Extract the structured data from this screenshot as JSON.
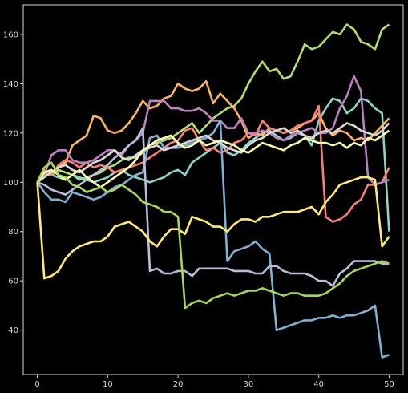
{
  "chart_data": {
    "type": "line",
    "title": "",
    "xlabel": "",
    "ylabel": "",
    "xlim": [
      -2,
      52
    ],
    "ylim": [
      22,
      172
    ],
    "xticks": [
      0,
      10,
      20,
      30,
      40,
      50
    ],
    "yticks": [
      40,
      60,
      80,
      100,
      120,
      140,
      160
    ],
    "grid": false,
    "background": "#000000",
    "axis_color": "#d8d8d8",
    "x": [
      0,
      1,
      2,
      3,
      4,
      5,
      6,
      7,
      8,
      9,
      10,
      11,
      12,
      13,
      14,
      15,
      16,
      17,
      18,
      19,
      20,
      21,
      22,
      23,
      24,
      25,
      26,
      27,
      28,
      29,
      30,
      31,
      32,
      33,
      34,
      35,
      36,
      37,
      38,
      39,
      40,
      41,
      42,
      43,
      44,
      45,
      46,
      47,
      48,
      49,
      50
    ],
    "series": [
      {
        "color": "#b3de69",
        "values": [
          100,
          104,
          103,
          105,
          104,
          103,
          101,
          102,
          103,
          104,
          106,
          107,
          109,
          110,
          110,
          112,
          115,
          116,
          117,
          118,
          120,
          122,
          124,
          120,
          123,
          126,
          128,
          130,
          131,
          134,
          140,
          145,
          149,
          145,
          146,
          142,
          143,
          149,
          156,
          154,
          155,
          158,
          161,
          160,
          164,
          162,
          157,
          156,
          154,
          162,
          164
        ]
      },
      {
        "color": "#8dd3c7",
        "values": [
          100,
          104,
          103,
          102,
          101,
          103,
          102,
          101,
          100,
          101,
          102,
          104,
          105,
          103,
          102,
          101,
          100,
          101,
          102,
          104,
          105,
          103,
          108,
          110,
          112,
          114,
          116,
          112,
          111,
          113,
          116,
          118,
          120,
          121,
          119,
          117,
          118,
          120,
          119,
          115,
          125,
          130,
          134,
          133,
          128,
          130,
          134,
          133,
          130,
          128,
          80
        ]
      },
      {
        "color": "#fdb462",
        "values": [
          100,
          103,
          104,
          106,
          108,
          115,
          117,
          119,
          127,
          126,
          121,
          120,
          121,
          124,
          128,
          133,
          130,
          131,
          134,
          135,
          140,
          138,
          137,
          138,
          141,
          132,
          136,
          133,
          130,
          125,
          118,
          120,
          119,
          122,
          121,
          120,
          121,
          122,
          124,
          125,
          128,
          122,
          119,
          121,
          120,
          117,
          118,
          117,
          120,
          123,
          126
        ]
      },
      {
        "color": "#fb8072",
        "values": [
          100,
          105,
          103,
          107,
          109,
          108,
          106,
          108,
          106,
          107,
          106,
          104,
          105,
          106,
          107,
          108,
          110,
          112,
          114,
          116,
          117,
          121,
          122,
          117,
          113,
          114,
          112,
          113,
          116,
          117,
          120,
          119,
          125,
          122,
          121,
          120,
          121,
          123,
          124,
          125,
          131,
          86,
          84,
          85,
          87,
          91,
          93,
          99,
          99,
          100,
          106
        ]
      },
      {
        "color": "#bc82bd",
        "values": [
          100,
          103,
          111,
          113,
          113,
          109,
          108,
          108,
          109,
          111,
          113,
          113,
          111,
          115,
          117,
          120,
          133,
          133,
          133,
          130,
          130,
          129,
          129,
          130,
          128,
          125,
          125,
          122,
          122,
          126,
          120,
          120,
          121,
          120,
          118,
          117,
          119,
          120,
          121,
          122,
          120,
          120,
          122,
          130,
          135,
          143,
          137,
          102,
          99,
          100,
          101
        ]
      },
      {
        "color": "#80b1d3",
        "values": [
          100,
          96,
          93,
          93,
          92,
          96,
          95,
          94,
          93,
          94,
          96,
          98,
          99,
          101,
          103,
          104,
          118,
          119,
          114,
          114,
          114,
          115,
          116,
          117,
          118,
          120,
          125,
          68,
          72,
          73,
          74,
          76,
          73,
          71,
          40,
          41,
          42,
          43,
          44,
          44,
          45,
          45,
          46,
          45,
          46,
          46,
          47,
          48,
          50,
          29,
          30
        ]
      },
      {
        "color": "#d9d9d9",
        "values": [
          100,
          102,
          104,
          106,
          107,
          105,
          104,
          106,
          108,
          109,
          111,
          113,
          110,
          109,
          111,
          113,
          114,
          115,
          113,
          114,
          115,
          116,
          117,
          118,
          119,
          117,
          116,
          114,
          113,
          112,
          115,
          117,
          118,
          120,
          121,
          122,
          120,
          121,
          119,
          118,
          120,
          121,
          120,
          122,
          124,
          123,
          121,
          120,
          119,
          121,
          124
        ]
      },
      {
        "color": "#bebada",
        "values": [
          100,
          99,
          97,
          96,
          95,
          97,
          99,
          101,
          103,
          105,
          107,
          110,
          112,
          115,
          117,
          122,
          64,
          65,
          63,
          63,
          64,
          64,
          62,
          65,
          65,
          65,
          65,
          65,
          64,
          64,
          64,
          63,
          63,
          66,
          66,
          64,
          63,
          63,
          63,
          62,
          60,
          60,
          58,
          63,
          65,
          68,
          68,
          68,
          68,
          67,
          67
        ]
      },
      {
        "color": "#ffffb3",
        "values": [
          100,
          104,
          105,
          103,
          101,
          103,
          105,
          102,
          100,
          98,
          100,
          102,
          104,
          106,
          109,
          113,
          115,
          117,
          118,
          119,
          116,
          114,
          115,
          117,
          115,
          116,
          117,
          116,
          115,
          113,
          112,
          114,
          116,
          115,
          114,
          113,
          115,
          116,
          118,
          117,
          116,
          116,
          115,
          116,
          114,
          116,
          115,
          118,
          117,
          119,
          121
        ]
      },
      {
        "color": "#ffed6f",
        "values": [
          100,
          61,
          62,
          64,
          69,
          72,
          74,
          75,
          76,
          76,
          78,
          82,
          83,
          84,
          82,
          80,
          76,
          74,
          78,
          81,
          81,
          79,
          86,
          85,
          84,
          82,
          82,
          80,
          83,
          85,
          85,
          84,
          86,
          86,
          87,
          88,
          88,
          88,
          89,
          90,
          87,
          92,
          95,
          99,
          100,
          101,
          102,
          102,
          101,
          74,
          78
        ]
      },
      {
        "color": "#a6d854",
        "values": [
          100,
          106,
          108,
          103,
          102,
          99,
          98,
          96,
          97,
          98,
          96,
          97,
          99,
          97,
          95,
          92,
          91,
          90,
          88,
          88,
          86,
          49,
          51,
          52,
          51,
          53,
          54,
          55,
          54,
          55,
          56,
          56,
          57,
          56,
          55,
          54,
          55,
          55,
          54,
          54,
          54,
          55,
          57,
          59,
          62,
          64,
          65,
          66,
          67,
          68,
          67
        ]
      }
    ]
  }
}
